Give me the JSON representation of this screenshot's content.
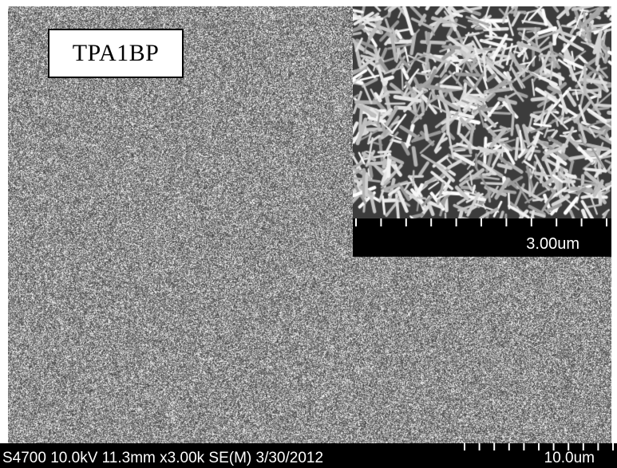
{
  "image": {
    "description_tag": "sem-micrograph",
    "sample_label": "TPA1BP",
    "inset": {
      "scale_label": "3.00um",
      "tick_count": 11
    },
    "info_bar": {
      "text": "S4700 10.0kV 11.3mm x3.00k SE(M) 3/30/2012",
      "scale_label": "10.0um",
      "tick_count": 11
    },
    "colors": {
      "background": "#8a8a8a",
      "bar": "#000000",
      "text_light": "#ffffff"
    }
  }
}
